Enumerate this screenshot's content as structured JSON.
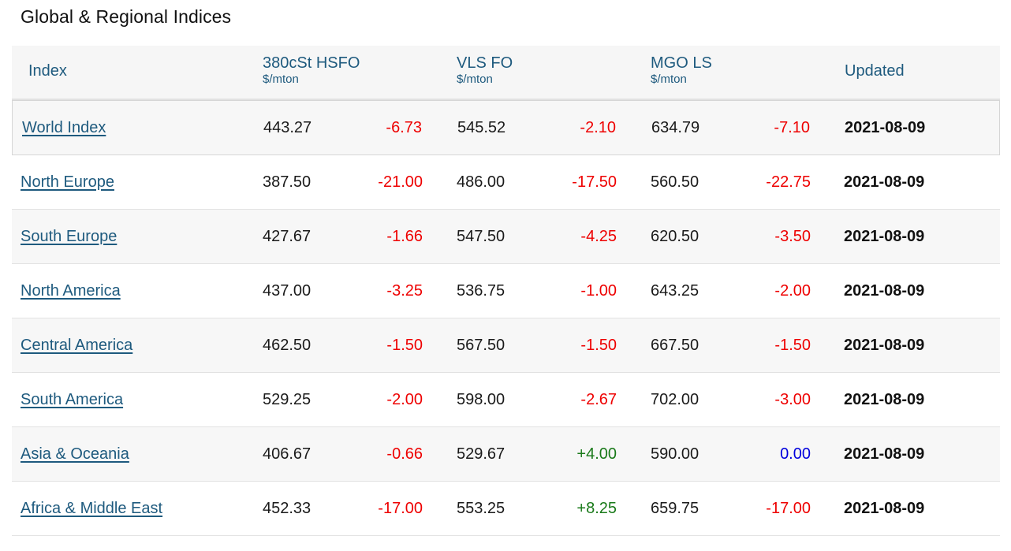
{
  "title": "Global & Regional Indices",
  "headers": {
    "index": "Index",
    "hsfo": "380cSt HSFO",
    "hsfo_unit": "$/mton",
    "vlsfo": "VLS FO",
    "vlsfo_unit": "$/mton",
    "mgo": "MGO LS",
    "mgo_unit": "$/mton",
    "updated": "Updated"
  },
  "rows": [
    {
      "name": "World Index",
      "hsfo": "443.27",
      "hsfo_chg": "-6.73",
      "vlsfo": "545.52",
      "vlsfo_chg": "-2.10",
      "mgo": "634.79",
      "mgo_chg": "-7.10",
      "updated": "2021-08-09"
    },
    {
      "name": "North Europe",
      "hsfo": "387.50",
      "hsfo_chg": "-21.00",
      "vlsfo": "486.00",
      "vlsfo_chg": "-17.50",
      "mgo": "560.50",
      "mgo_chg": "-22.75",
      "updated": "2021-08-09"
    },
    {
      "name": "South Europe",
      "hsfo": "427.67",
      "hsfo_chg": "-1.66",
      "vlsfo": "547.50",
      "vlsfo_chg": "-4.25",
      "mgo": "620.50",
      "mgo_chg": "-3.50",
      "updated": "2021-08-09"
    },
    {
      "name": "North America",
      "hsfo": "437.00",
      "hsfo_chg": "-3.25",
      "vlsfo": "536.75",
      "vlsfo_chg": "-1.00",
      "mgo": "643.25",
      "mgo_chg": "-2.00",
      "updated": "2021-08-09"
    },
    {
      "name": "Central America",
      "hsfo": "462.50",
      "hsfo_chg": "-1.50",
      "vlsfo": "567.50",
      "vlsfo_chg": "-1.50",
      "mgo": "667.50",
      "mgo_chg": "-1.50",
      "updated": "2021-08-09"
    },
    {
      "name": "South America",
      "hsfo": "529.25",
      "hsfo_chg": "-2.00",
      "vlsfo": "598.00",
      "vlsfo_chg": "-2.67",
      "mgo": "702.00",
      "mgo_chg": "-3.00",
      "updated": "2021-08-09"
    },
    {
      "name": "Asia & Oceania",
      "hsfo": "406.67",
      "hsfo_chg": "-0.66",
      "vlsfo": "529.67",
      "vlsfo_chg": "+4.00",
      "mgo": "590.00",
      "mgo_chg": "0.00",
      "updated": "2021-08-09"
    },
    {
      "name": "Africa & Middle East",
      "hsfo": "452.33",
      "hsfo_chg": "-17.00",
      "vlsfo": "553.25",
      "vlsfo_chg": "+8.25",
      "mgo": "659.75",
      "mgo_chg": "-17.00",
      "updated": "2021-08-09"
    }
  ],
  "colors": {
    "header_text": "#1e5a7e",
    "link": "#1e5a7e",
    "negative": "#ee0000",
    "positive": "#1a7a1a",
    "zero": "#0000dd"
  }
}
